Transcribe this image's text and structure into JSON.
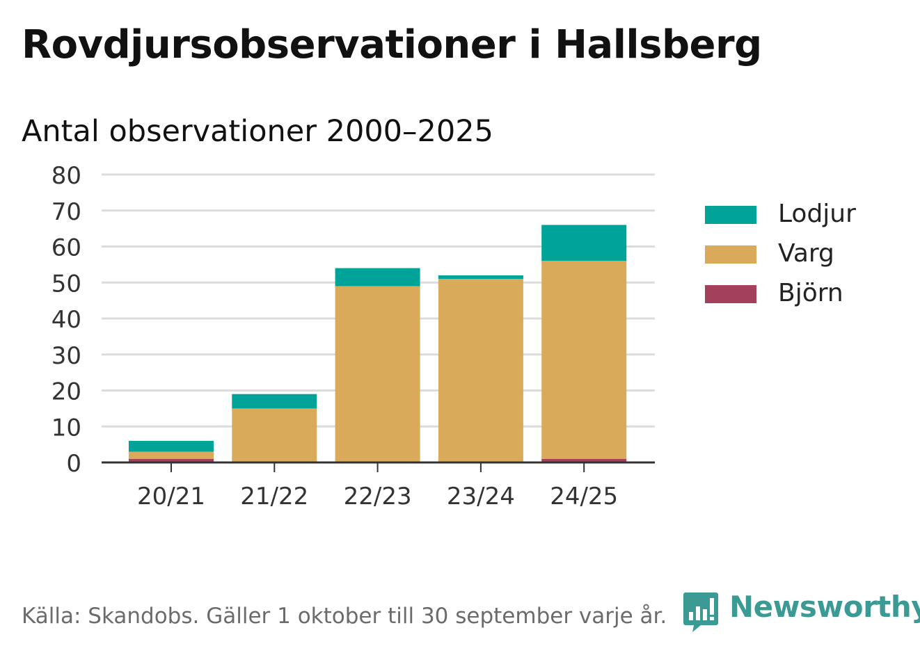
{
  "chart_data": {
    "type": "bar",
    "stacked": true,
    "title": "Rovdjursobservationer i Hallsberg",
    "subtitle": "Antal observationer 2000–2025",
    "categories": [
      "20/21",
      "21/22",
      "22/23",
      "23/24",
      "24/25"
    ],
    "series": [
      {
        "name": "Björn",
        "color": "#a3405c",
        "values": [
          1,
          0,
          0,
          0,
          1
        ]
      },
      {
        "name": "Varg",
        "color": "#d9aa5a",
        "values": [
          2,
          15,
          49,
          51,
          55
        ]
      },
      {
        "name": "Lodjur",
        "color": "#00a398",
        "values": [
          3,
          4,
          5,
          1,
          10
        ]
      }
    ],
    "legend_order": [
      "Lodjur",
      "Varg",
      "Björn"
    ],
    "ylim": [
      0,
      80
    ],
    "yticks": [
      0,
      10,
      20,
      30,
      40,
      50,
      60,
      70,
      80
    ],
    "grid": true,
    "legend_position": "right",
    "xlabel": "",
    "ylabel": ""
  },
  "footer": {
    "source": "Källa: Skandobs. Gäller 1 oktober till 30 september varje år.",
    "brand": "Newsworthy",
    "brand_color": "#3b9a94"
  }
}
